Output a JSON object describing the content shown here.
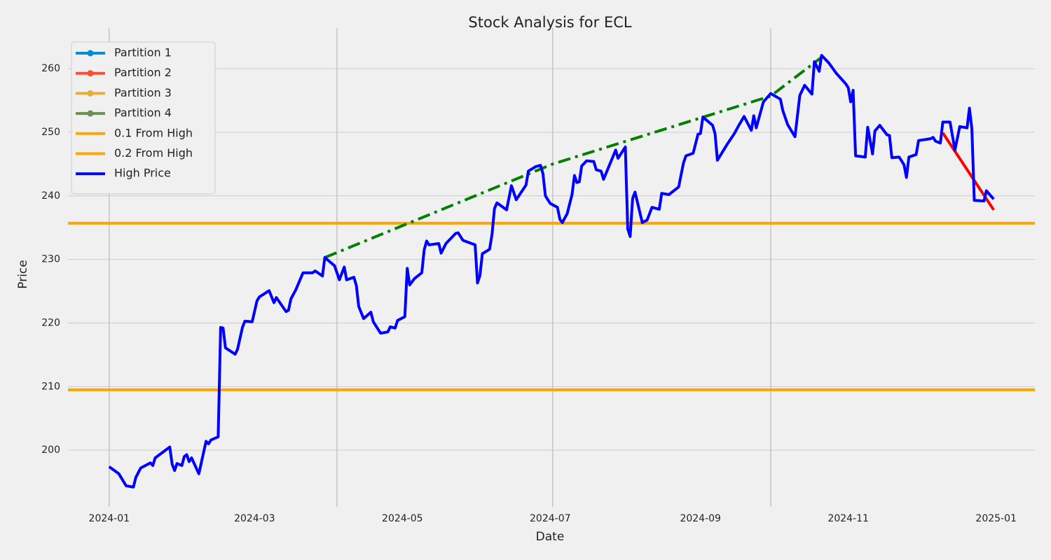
{
  "chart_data": {
    "type": "line",
    "title": "Stock Analysis for ECL",
    "x_label": "Date",
    "y_label": "Price",
    "xlim": [
      "2023-12-15",
      "2025-01-17"
    ],
    "xticks": [
      "2024-01",
      "2024-03",
      "2024-05",
      "2024-07",
      "2024-09",
      "2024-11",
      "2025-01"
    ],
    "ylim": [
      191.1,
      266.4
    ],
    "yticks": [
      200,
      210,
      220,
      230,
      240,
      250,
      260
    ],
    "grid": true,
    "legend": "upper left",
    "series": [
      {
        "name": "Partition 1",
        "color": "#008fd5",
        "marker": true,
        "x": [],
        "values": []
      },
      {
        "name": "Partition 2",
        "color": "#fc4f30",
        "marker": true,
        "x": [],
        "values": []
      },
      {
        "name": "Partition 3",
        "color": "#e5ae38",
        "marker": true,
        "x": [],
        "values": []
      },
      {
        "name": "Partition 4",
        "color": "#6d904f",
        "marker": true,
        "x": [],
        "values": []
      },
      {
        "name": "High Price",
        "color": "#0000ff",
        "marker": false,
        "x": [
          "2024-01-01",
          "2024-01-05",
          "2024-01-08",
          "2024-01-11",
          "2024-01-12",
          "2024-01-14",
          "2024-01-18",
          "2024-01-19",
          "2024-01-20",
          "2024-01-26",
          "2024-01-27",
          "2024-01-28",
          "2024-01-29",
          "2024-01-31",
          "2024-02-01",
          "2024-02-02",
          "2024-02-03",
          "2024-02-04",
          "2024-02-07",
          "2024-02-10",
          "2024-02-11",
          "2024-02-12",
          "2024-02-15",
          "2024-02-16",
          "2024-02-17",
          "2024-02-18",
          "2024-02-22",
          "2024-02-23",
          "2024-02-25",
          "2024-02-26",
          "2024-02-29",
          "2024-03-02",
          "2024-03-03",
          "2024-03-07",
          "2024-03-09",
          "2024-03-10",
          "2024-03-14",
          "2024-03-15",
          "2024-03-16",
          "2024-03-18",
          "2024-03-21",
          "2024-03-25",
          "2024-03-26",
          "2024-03-29",
          "2024-03-30",
          "2024-04-03",
          "2024-04-05",
          "2024-04-07",
          "2024-04-08",
          "2024-04-11",
          "2024-04-12",
          "2024-04-13",
          "2024-04-15",
          "2024-04-18",
          "2024-04-19",
          "2024-04-22",
          "2024-04-25",
          "2024-04-26",
          "2024-04-28",
          "2024-04-29",
          "2024-05-02",
          "2024-05-03",
          "2024-05-04",
          "2024-05-06",
          "2024-05-09",
          "2024-05-10",
          "2024-05-11",
          "2024-05-12",
          "2024-05-16",
          "2024-05-17",
          "2024-05-19",
          "2024-05-23",
          "2024-05-24",
          "2024-05-26",
          "2024-05-31",
          "2024-06-01",
          "2024-06-02",
          "2024-06-03",
          "2024-06-06",
          "2024-06-07",
          "2024-06-08",
          "2024-06-09",
          "2024-06-13",
          "2024-06-15",
          "2024-06-17",
          "2024-06-21",
          "2024-06-22",
          "2024-06-25",
          "2024-06-27",
          "2024-06-28",
          "2024-06-29",
          "2024-07-01",
          "2024-07-04",
          "2024-07-05",
          "2024-07-06",
          "2024-07-08",
          "2024-07-10",
          "2024-07-11",
          "2024-07-12",
          "2024-07-13",
          "2024-07-14",
          "2024-07-16",
          "2024-07-19",
          "2024-07-20",
          "2024-07-22",
          "2024-07-23",
          "2024-07-28",
          "2024-07-29",
          "2024-08-01",
          "2024-08-02",
          "2024-08-03",
          "2024-08-04",
          "2024-08-05",
          "2024-08-08",
          "2024-08-10",
          "2024-08-12",
          "2024-08-15",
          "2024-08-16",
          "2024-08-19",
          "2024-08-23",
          "2024-08-25",
          "2024-08-26",
          "2024-08-29",
          "2024-08-31",
          "2024-09-01",
          "2024-09-02",
          "2024-09-06",
          "2024-09-07",
          "2024-09-08",
          "2024-09-12",
          "2024-09-15",
          "2024-09-17",
          "2024-09-19",
          "2024-09-22",
          "2024-09-23",
          "2024-09-24",
          "2024-09-27",
          "2024-09-30",
          "2024-10-04",
          "2024-10-05",
          "2024-10-07",
          "2024-10-10",
          "2024-10-12",
          "2024-10-14",
          "2024-10-17",
          "2024-10-18",
          "2024-10-20",
          "2024-10-21",
          "2024-10-24",
          "2024-10-27",
          "2024-10-31",
          "2024-11-01",
          "2024-11-02",
          "2024-11-03",
          "2024-11-04",
          "2024-11-08",
          "2024-11-09",
          "2024-11-11",
          "2024-11-12",
          "2024-11-14",
          "2024-11-17",
          "2024-11-18",
          "2024-11-19",
          "2024-11-22",
          "2024-11-24",
          "2024-11-25",
          "2024-11-26",
          "2024-11-29",
          "2024-11-30",
          "2024-12-05",
          "2024-12-06",
          "2024-12-07",
          "2024-12-09",
          "2024-12-10",
          "2024-12-13",
          "2024-12-15",
          "2024-12-17",
          "2024-12-20",
          "2024-12-21",
          "2024-12-22",
          "2024-12-23",
          "2024-12-27",
          "2024-12-28",
          "2024-12-31"
        ],
        "values": [
          197.4,
          196.3,
          194.4,
          194.2,
          195.7,
          197.2,
          198.0,
          197.6,
          198.8,
          200.5,
          197.8,
          196.8,
          197.9,
          197.6,
          199.0,
          199.3,
          198.2,
          198.8,
          196.3,
          201.4,
          201.0,
          201.6,
          202.1,
          219.3,
          219.2,
          216.1,
          215.1,
          215.9,
          219.3,
          220.3,
          220.2,
          223.5,
          224.1,
          225.1,
          223.2,
          224.0,
          221.8,
          222.0,
          223.8,
          225.2,
          227.9,
          227.9,
          228.2,
          227.4,
          230.3,
          229.0,
          226.8,
          228.8,
          226.8,
          227.2,
          225.9,
          222.6,
          220.7,
          221.7,
          220.2,
          218.4,
          218.6,
          219.4,
          219.2,
          220.4,
          221.0,
          228.6,
          226.0,
          227.0,
          227.9,
          231.5,
          232.9,
          232.3,
          232.5,
          231.0,
          232.5,
          234.1,
          234.2,
          233.0,
          232.3,
          226.3,
          227.5,
          230.9,
          231.6,
          234.0,
          238.0,
          238.9,
          237.8,
          241.6,
          239.4,
          241.7,
          243.9,
          244.6,
          244.8,
          243.5,
          240.0,
          238.8,
          238.2,
          236.3,
          235.8,
          237.2,
          240.2,
          243.2,
          242.1,
          242.2,
          244.7,
          245.5,
          245.4,
          244.1,
          243.9,
          242.6,
          247.2,
          245.9,
          247.7,
          234.8,
          233.6,
          239.6,
          240.6,
          235.8,
          236.2,
          238.2,
          237.9,
          240.4,
          240.2,
          241.4,
          245.2,
          246.3,
          246.7,
          249.7,
          249.8,
          252.4,
          251.1,
          249.8,
          245.6,
          248.1,
          249.8,
          251.2,
          252.5,
          250.3,
          252.6,
          250.7,
          254.8,
          256.1,
          255.2,
          253.4,
          251.2,
          249.3,
          255.8,
          257.4,
          256.0,
          261.1,
          259.6,
          262.1,
          260.9,
          259.3,
          257.6,
          257.0,
          254.8,
          256.6,
          246.3,
          246.1,
          250.8,
          246.6,
          250.2,
          251.1,
          249.6,
          249.5,
          246.0,
          246.1,
          244.9,
          242.9,
          246.1,
          246.5,
          248.7,
          249.0,
          249.2,
          248.6,
          248.3,
          251.6,
          251.6,
          247.2,
          250.9,
          250.7,
          253.8,
          250.5,
          239.3,
          239.2,
          240.8,
          239.5
        ]
      }
    ],
    "hlines": [
      {
        "name": "0.1 From High",
        "color": "#ffa500",
        "value": 235.7
      },
      {
        "name": "0.2 From High",
        "color": "#ffa500",
        "value": 209.5
      }
    ],
    "trend_lines": [
      {
        "color": "#008000",
        "linestyle": "dashdot",
        "x": [
          "2024-03-30",
          "2024-07-02",
          "2024-09-30",
          "2024-10-21"
        ],
        "values": [
          230.3,
          245.0,
          255.7,
          261.8
        ]
      },
      {
        "color": "#ff0000",
        "linestyle": "solid",
        "x": [
          "2024-12-10",
          "2024-12-31"
        ],
        "values": [
          249.9,
          237.8
        ]
      }
    ],
    "vlines": [
      "2024-01-01",
      "2024-04-04",
      "2024-07-02",
      "2024-09-30"
    ]
  }
}
